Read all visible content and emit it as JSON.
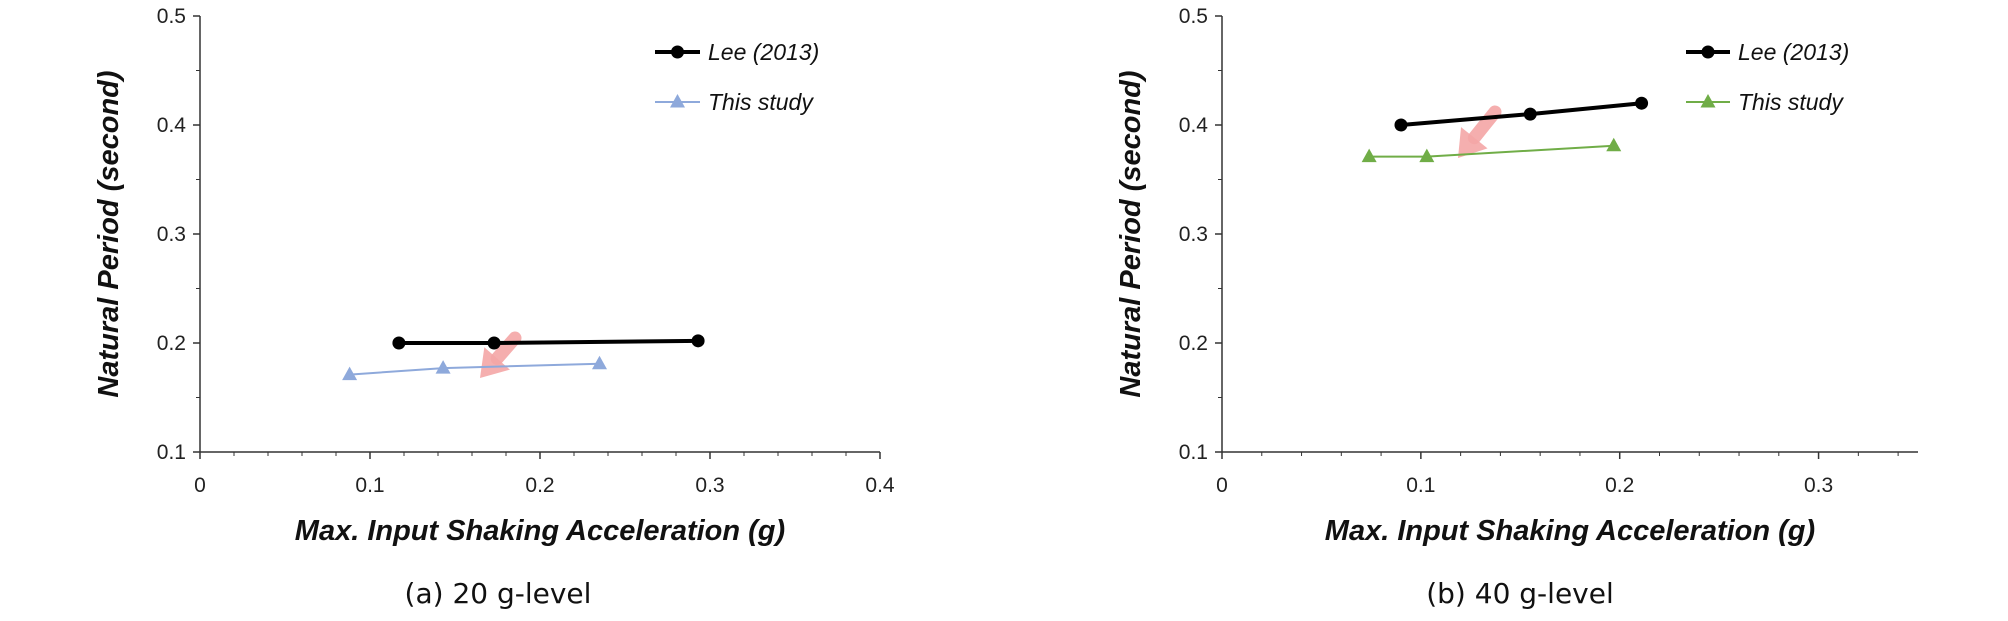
{
  "chart_data": [
    {
      "type": "line",
      "caption": "(a) 20 g-level",
      "xlabel": "Max. Input Shaking Acceleration (g)",
      "ylabel": "Natural Period (second)",
      "xlim": [
        0,
        0.4
      ],
      "ylim": [
        0.1,
        0.5
      ],
      "x_ticks": [
        "0",
        "0.1",
        "0.2",
        "0.3",
        "0.4"
      ],
      "y_ticks": [
        "0.1",
        "0.2",
        "0.3",
        "0.4",
        "0.5"
      ],
      "grid": false,
      "legend_position": "top-right",
      "annotation": "pink arrow pointing down-left between the series",
      "series": [
        {
          "name": "Lee (2013)",
          "marker": "circle",
          "color": "#000000",
          "x": [
            0.117,
            0.173,
            0.293
          ],
          "y": [
            0.2,
            0.2,
            0.202
          ]
        },
        {
          "name": "This study",
          "marker": "triangle",
          "color": "#8EA9DB",
          "x": [
            0.088,
            0.143,
            0.235
          ],
          "y": [
            0.171,
            0.177,
            0.181
          ]
        }
      ]
    },
    {
      "type": "line",
      "caption": "(b) 40 g-level",
      "xlabel": "Max. Input Shaking Acceleration (g)",
      "ylabel": "Natural Period (second)",
      "xlim": [
        0,
        0.35
      ],
      "ylim": [
        0.1,
        0.5
      ],
      "x_ticks": [
        "0",
        "0.1",
        "0.2",
        "0.3"
      ],
      "y_ticks": [
        "0.1",
        "0.2",
        "0.3",
        "0.4",
        "0.5"
      ],
      "grid": false,
      "legend_position": "top-right",
      "annotation": "pink arrow pointing down-left between the series",
      "series": [
        {
          "name": "Lee (2013)",
          "marker": "circle",
          "color": "#000000",
          "x": [
            0.09,
            0.155,
            0.211
          ],
          "y": [
            0.4,
            0.41,
            0.42
          ]
        },
        {
          "name": "This study",
          "marker": "triangle",
          "color": "#70AD47",
          "x": [
            0.074,
            0.103,
            0.197
          ],
          "y": [
            0.371,
            0.371,
            0.381
          ]
        }
      ]
    }
  ]
}
